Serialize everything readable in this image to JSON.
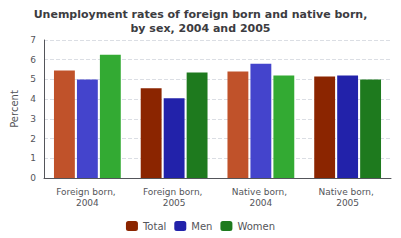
{
  "chart_data": {
    "type": "bar",
    "title": "Unemployment rates of foreign born and native born,\nby sex, 2004 and 2005",
    "categories": [
      "Foreign born, 2004",
      "Foreign born, 2005",
      "Native born, 2004",
      "Native born, 2005"
    ],
    "series": [
      {
        "name": "Total",
        "color": "#8B2500",
        "colors": [
          "#C0522A",
          "#8B2500",
          "#C0522A",
          "#8B2500"
        ],
        "values": [
          5.45,
          4.55,
          5.4,
          5.15
        ]
      },
      {
        "name": "Men",
        "color": "#2222AA",
        "colors": [
          "#4444CC",
          "#2222AA",
          "#4444CC",
          "#2222AA"
        ],
        "values": [
          5.0,
          4.05,
          5.8,
          5.2
        ]
      },
      {
        "name": "Women",
        "color": "#1E7A1E",
        "colors": [
          "#33AA33",
          "#1E7A1E",
          "#33AA33",
          "#1E7A1E"
        ],
        "values": [
          6.25,
          5.35,
          5.2,
          5.0
        ]
      }
    ],
    "ylabel": "Percent",
    "ylim": [
      0,
      7
    ],
    "yticks": [
      0,
      1,
      2,
      3,
      4,
      5,
      6,
      7
    ],
    "grid": true,
    "legend": "bottom"
  }
}
